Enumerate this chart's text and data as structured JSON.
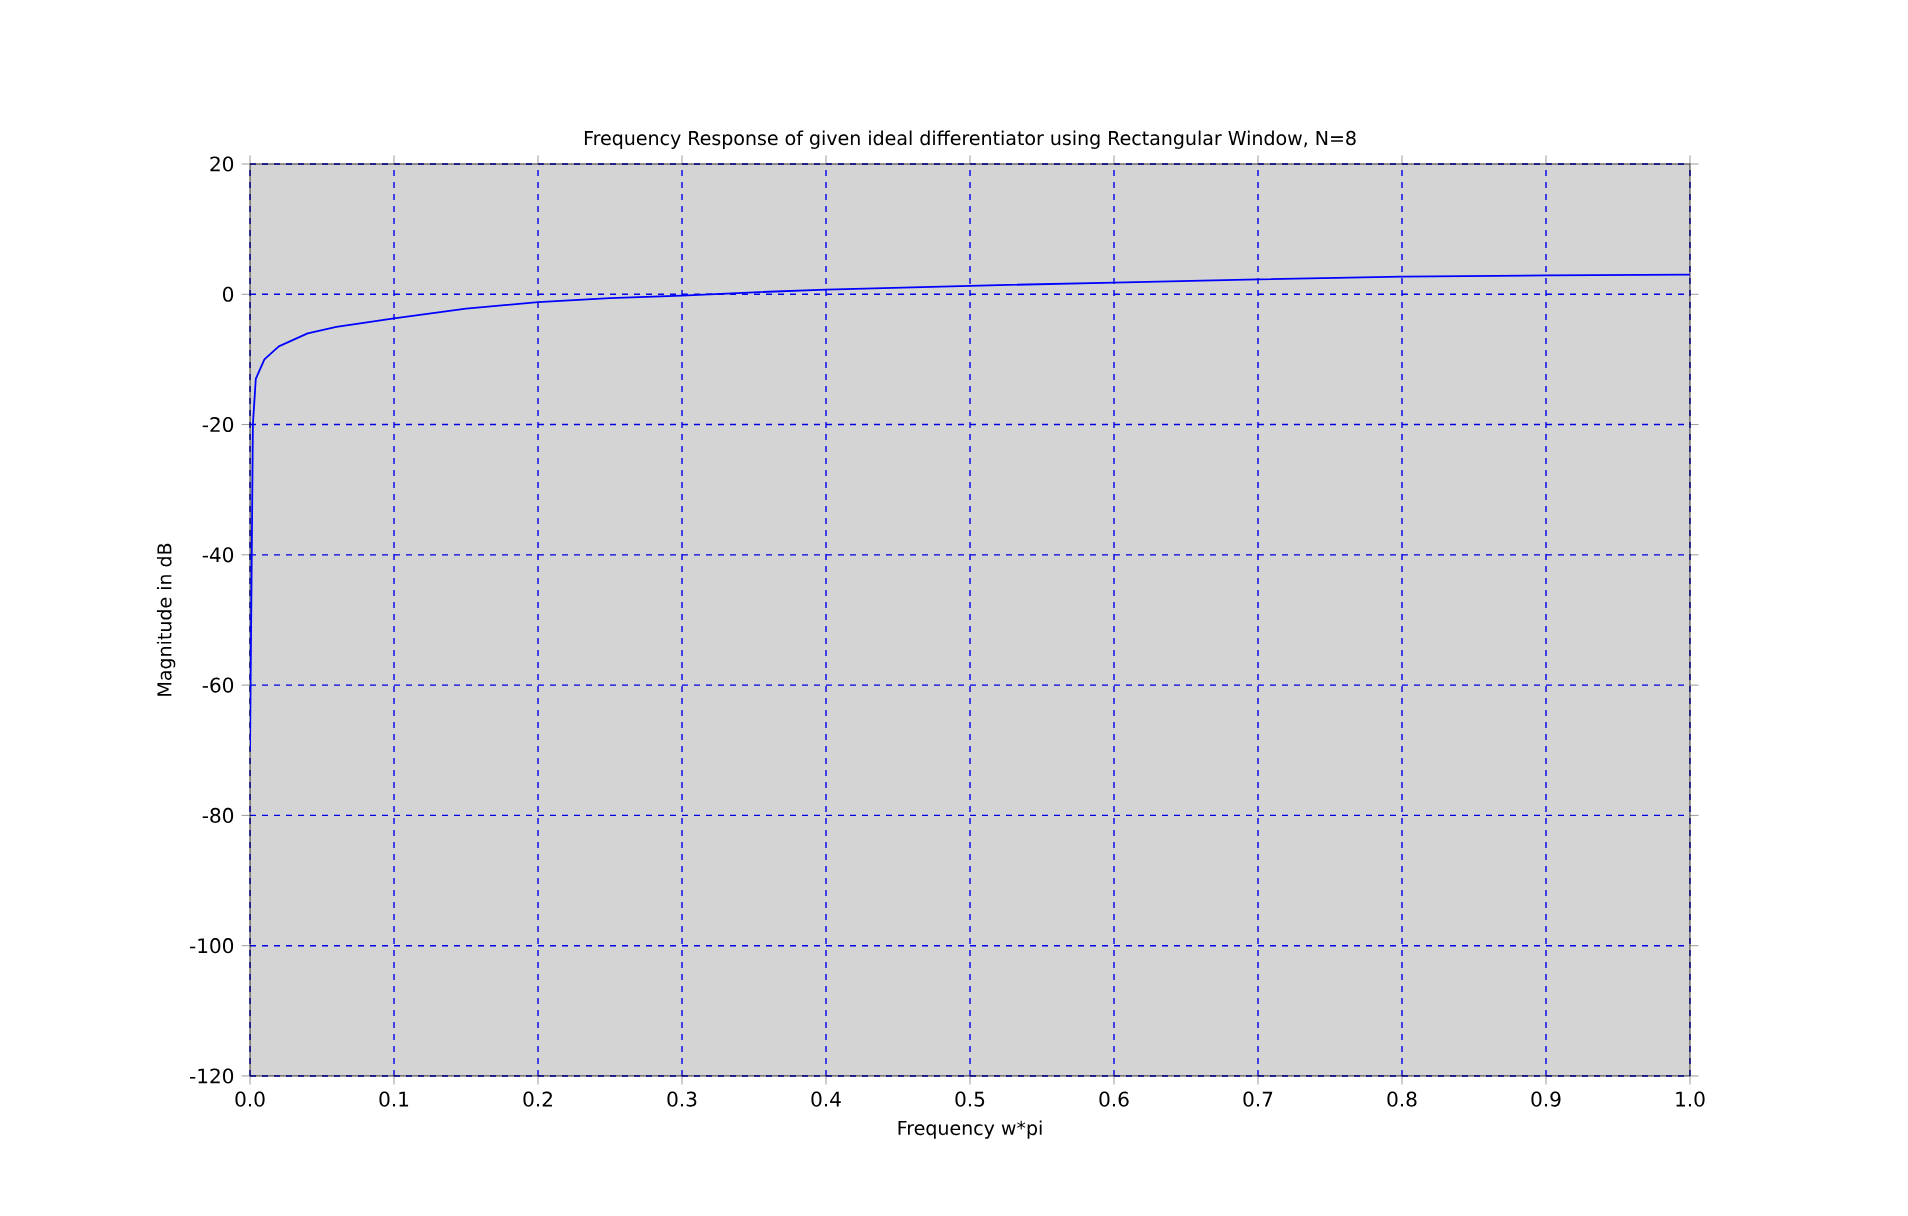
{
  "chart_data": {
    "type": "line",
    "title": "Frequency Response of given ideal differentiator using Rectangular Window, N=8",
    "xlabel": "Frequency w*pi",
    "ylabel": "Magnitude in dB",
    "x": [
      0,
      0.002,
      0.004,
      0.01,
      0.02,
      0.04,
      0.06,
      0.1,
      0.15,
      0.2,
      0.25,
      0.3,
      0.35,
      0.4,
      0.5,
      0.6,
      0.7,
      0.8,
      0.9,
      1.0
    ],
    "series": [
      {
        "color": "#0000ff",
        "values": [
          -70,
          -20,
          -13,
          -10,
          -8,
          -6,
          -5,
          -3.7,
          -2.2,
          -1.2,
          -0.6,
          -0.2,
          0.3,
          0.7,
          1.3,
          1.8,
          2.3,
          2.7,
          2.9,
          3.0
        ]
      }
    ],
    "xlim": [
      0,
      1
    ],
    "ylim": [
      -120,
      20
    ],
    "xticks": [
      {
        "value": 0,
        "label": "0.0"
      },
      {
        "value": 0.1,
        "label": "0.1"
      },
      {
        "value": 0.2,
        "label": "0.2"
      },
      {
        "value": 0.3,
        "label": "0.3"
      },
      {
        "value": 0.4,
        "label": "0.4"
      },
      {
        "value": 0.5,
        "label": "0.5"
      },
      {
        "value": 0.6,
        "label": "0.6"
      },
      {
        "value": 0.7,
        "label": "0.7"
      },
      {
        "value": 0.8,
        "label": "0.8"
      },
      {
        "value": 0.9,
        "label": "0.9"
      },
      {
        "value": 1.0,
        "label": "1.0"
      }
    ],
    "yticks": [
      -120,
      -100,
      -80,
      -60,
      -40,
      -20,
      0,
      20
    ],
    "grid": true,
    "marker": "none",
    "line_style": "solid"
  }
}
